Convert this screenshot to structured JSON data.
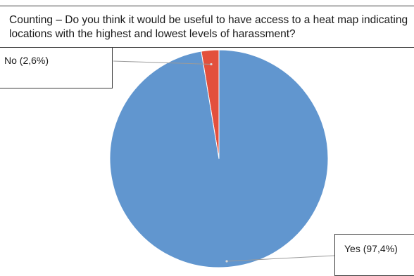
{
  "chart_data": {
    "type": "pie",
    "title": "Counting – Do you think it would be useful to have access to a heat map indicating locations with the highest and lowest levels of harassment?",
    "slices": [
      {
        "label": "Yes (97,4%)",
        "value": 97.4,
        "color": "#6196cf"
      },
      {
        "label": "No (2,6%)",
        "value": 2.6,
        "color": "#e3503c"
      }
    ]
  }
}
